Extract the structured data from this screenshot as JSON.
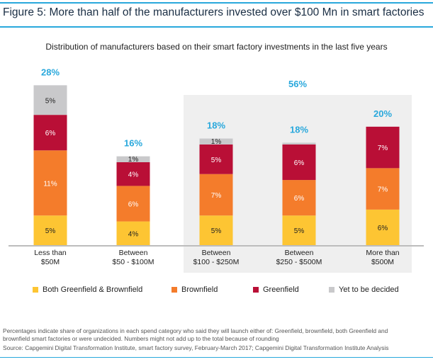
{
  "figure": {
    "title": "Figure 5: More than half of the manufacturers invested over $100 Mn in smart factories",
    "accent_color": "#29a8dc"
  },
  "chart_data": {
    "type": "bar",
    "stacked": true,
    "title": "Distribution of manufacturers based on their smart factory investments in the last five years",
    "xlabel": "",
    "ylabel": "",
    "ylim": [
      0,
      28
    ],
    "grid": false,
    "categories": [
      [
        "Less than",
        "$50M"
      ],
      [
        "Between",
        "$50 - $100M"
      ],
      [
        "Between",
        "$100 - $250M"
      ],
      [
        "Between",
        "$250 - $500M"
      ],
      [
        "More than",
        "$500M"
      ]
    ],
    "series": [
      {
        "name": "Both Greenfield & Brownfield",
        "color": "#fdc533",
        "label_color": "#222222",
        "values": [
          5,
          4,
          5,
          5,
          6
        ],
        "labels": [
          "5%",
          "4%",
          "5%",
          "5%",
          "6%"
        ]
      },
      {
        "name": "Brownfield",
        "color": "#f47c2b",
        "label_color": "#ffffff",
        "values": [
          11,
          6,
          7,
          6,
          7
        ],
        "labels": [
          "11%",
          "6%",
          "7%",
          "6%",
          "7%"
        ]
      },
      {
        "name": "Greenfield",
        "color": "#b90f36",
        "label_color": "#ffffff",
        "values": [
          6,
          4,
          5,
          6,
          7
        ],
        "labels": [
          "6%",
          "4%",
          "5%",
          "6%",
          "7%"
        ]
      },
      {
        "name": "Yet to be decided",
        "color": "#c9c9cb",
        "label_color": "#222222",
        "values": [
          5,
          1,
          1,
          0.3,
          0
        ],
        "labels": [
          "5%",
          "1%",
          "1%",
          "",
          ""
        ]
      }
    ],
    "totals": [
      "28%",
      "16%",
      "18%",
      "18%",
      "20%"
    ],
    "group_highlight": {
      "label": "56%",
      "categories": [
        2,
        3,
        4
      ],
      "color": "#efefef"
    },
    "legend_position": "bottom"
  },
  "notes": {
    "line1": "Percentages indicate share of organizations in each spend category who said they will launch either of: Greenfield, brownfield, both Greenfield and",
    "line2": "brownfield smart factories or were undecided. Numbers might not add up to the total because of rounding",
    "source": "Source: Capgemini Digital Transformation Institute, smart factory survey, February-March 2017; Capgemini Digital Transformation Institute Analysis"
  }
}
